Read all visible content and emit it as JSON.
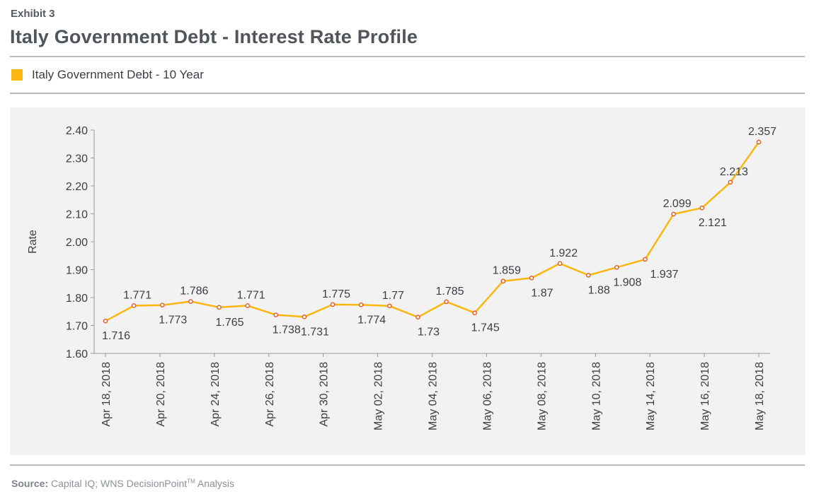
{
  "header": {
    "exhibit": "Exhibit 3",
    "title": "Italy Government Debt - Interest Rate Profile"
  },
  "legend": {
    "label": "Italy Government Debt - 10 Year",
    "color": "#fbb710"
  },
  "footer": {
    "source_label": "Source:",
    "source_text": "Capital IQ; WNS DecisionPoint",
    "trademark": "TM",
    "source_suffix": " Analysis"
  },
  "chart_data": {
    "type": "line",
    "ylabel": "Rate",
    "ylim": [
      1.6,
      2.4
    ],
    "yticks": [
      "1.60",
      "1.70",
      "1.80",
      "1.90",
      "2.00",
      "2.10",
      "2.20",
      "2.30",
      "2.40"
    ],
    "xtick_labels": [
      "Apr 18, 2018",
      "Apr 20, 2018",
      "Apr 24, 2018",
      "Apr 26, 2018",
      "Apr 30, 2018",
      "May 02, 2018",
      "May 04, 2018",
      "May 06, 2018",
      "May 08, 2018",
      "May 10, 2018",
      "May 14, 2018",
      "May 16, 2018",
      "May 18, 2018"
    ],
    "series": [
      {
        "name": "Italy Government Debt - 10 Year",
        "color": "#fbb710",
        "marker_color": "#e8561f",
        "values": [
          1.716,
          1.771,
          1.773,
          1.786,
          1.765,
          1.771,
          1.738,
          1.731,
          1.775,
          1.774,
          1.77,
          1.73,
          1.785,
          1.745,
          1.859,
          1.87,
          1.922,
          1.88,
          1.908,
          1.937,
          2.099,
          2.121,
          2.213,
          2.357
        ],
        "data_labels": [
          "1.716",
          "1.771",
          "1.773",
          "1.786",
          "1.765",
          "1.771",
          "1.738",
          "1.731",
          "1.775",
          "1.774",
          "1.77",
          "1.73",
          "1.785",
          "1.745",
          "1.859",
          "1.87",
          "1.922",
          "1.88",
          "1.908",
          "1.937",
          "2.099",
          "2.121",
          "2.213",
          "2.357"
        ]
      }
    ],
    "grid": false,
    "legend_position": "top-left"
  }
}
